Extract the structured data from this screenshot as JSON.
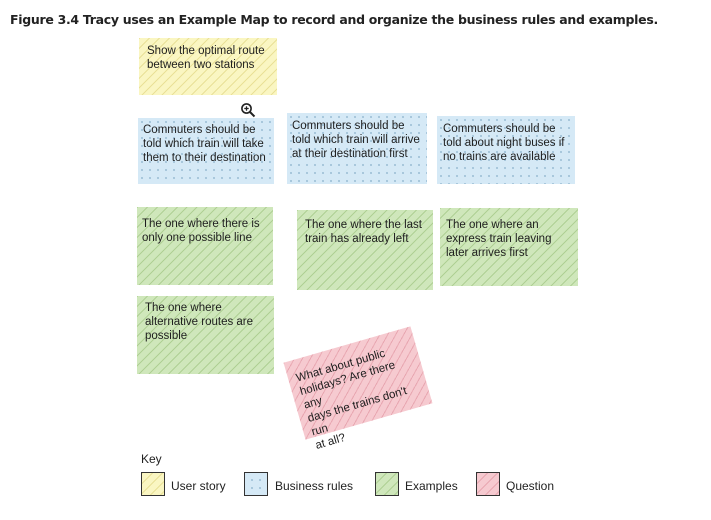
{
  "caption": "Figure 3.4 Tracy uses an Example Map to record and organize the business rules and examples.",
  "story": "Show the optimal route\nbetween two stations",
  "rules": [
    "Commuters should be\ntold which train will take\nthem to their destination",
    "Commuters should be\ntold which train will arrive\nat their destination first",
    "Commuters should be\ntold about night buses if\nno trains are available"
  ],
  "examples": [
    "The one where there is\nonly one possible line",
    "The one where the last\ntrain has already left",
    "The one where an\nexpress train leaving\nlater arrives first",
    "The one where\nalternative routes are\npossible"
  ],
  "question": "What about public\nholidays? Are there any\ndays the trains don't run\nat all?",
  "key": {
    "title": "Key",
    "items": [
      {
        "label": "User story",
        "type": "story"
      },
      {
        "label": "Business rules",
        "type": "rule"
      },
      {
        "label": "Examples",
        "type": "example"
      },
      {
        "label": "Question",
        "type": "question"
      }
    ]
  },
  "icons": {
    "zoom": "zoom-in-icon"
  },
  "colors": {
    "story": "#faf6c2",
    "rule": "#d5e9f6",
    "example": "#cfe7bb",
    "question": "#f6cad0"
  }
}
